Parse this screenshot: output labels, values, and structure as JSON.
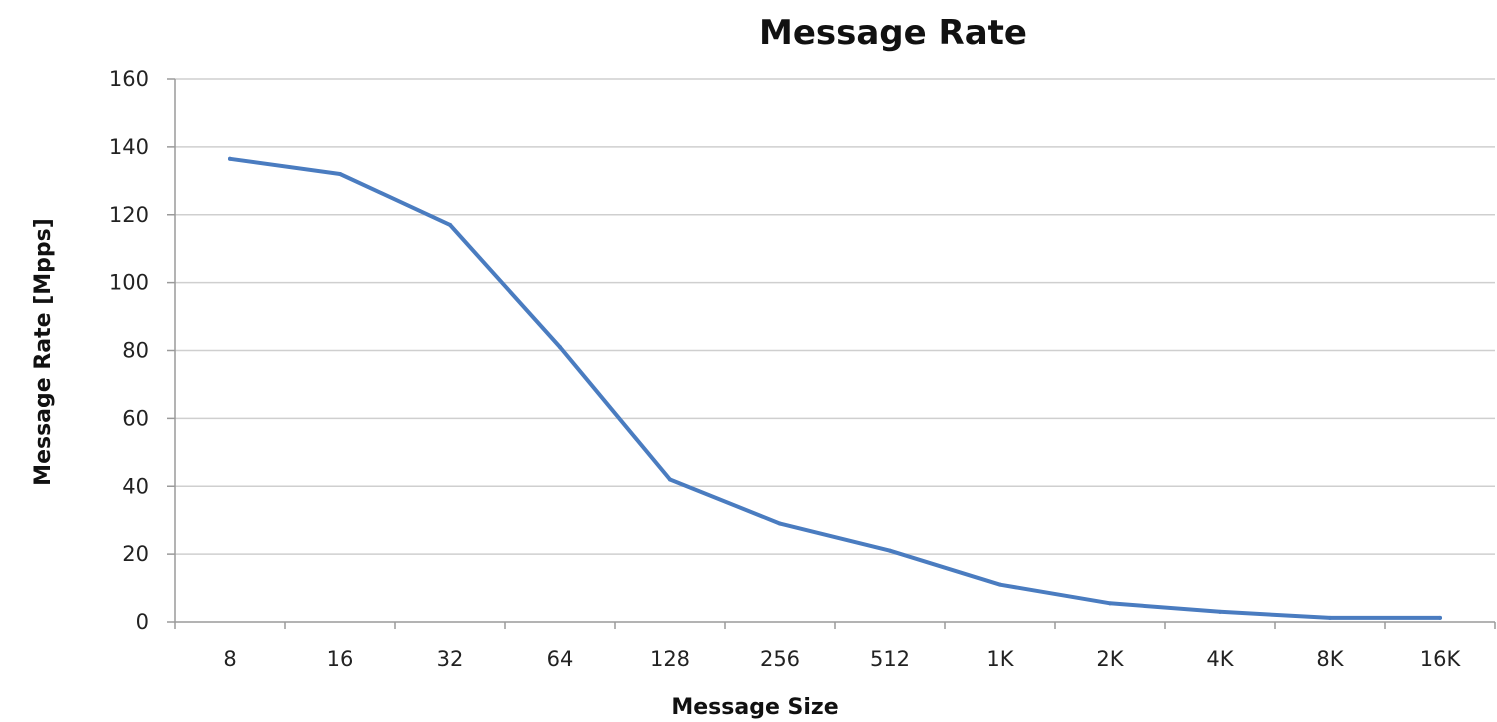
{
  "chart_data": {
    "type": "line",
    "title": "Message Rate",
    "xlabel": "Message Size",
    "ylabel": "Message Rate [Mpps]",
    "categories": [
      "8",
      "16",
      "32",
      "64",
      "128",
      "256",
      "512",
      "1K",
      "2K",
      "4K",
      "8K",
      "16K"
    ],
    "yticks": [
      "0",
      "20",
      "40",
      "60",
      "80",
      "100",
      "120",
      "140",
      "160"
    ],
    "ylim": [
      0,
      160
    ],
    "grid": true,
    "legend": "none",
    "series": [
      {
        "color": "#4a7cc0",
        "values": [
          136.5,
          132,
          117,
          81,
          42,
          29,
          21,
          11,
          5.5,
          3,
          1.2,
          1.2
        ]
      }
    ]
  }
}
